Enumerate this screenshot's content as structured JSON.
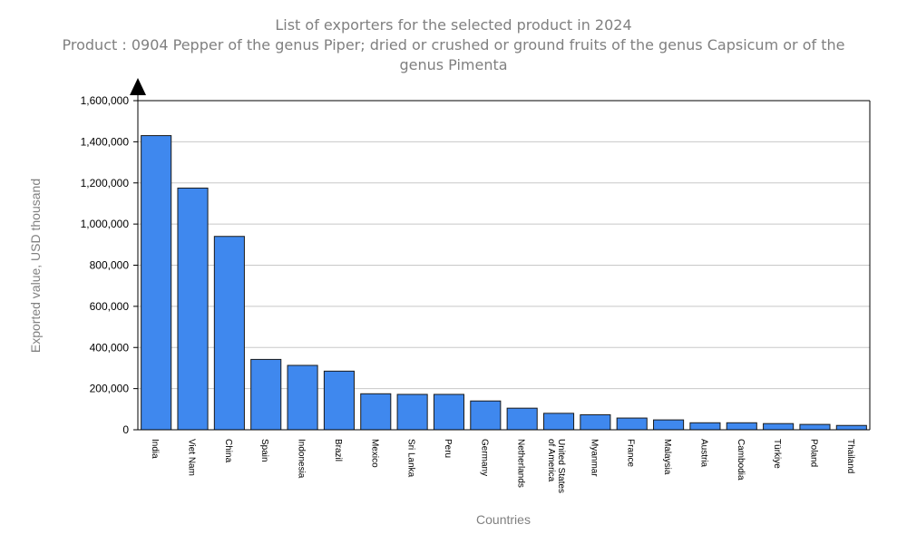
{
  "chart_data": {
    "type": "bar",
    "title": "List of exporters for the selected product in 2024",
    "subtitle": "Product : 0904 Pepper of the genus Piper; dried or crushed or ground fruits of the genus Capsicum or of the genus Pimenta",
    "xlabel": "Countries",
    "ylabel": "Exported value, USD thousand",
    "ylim": [
      0,
      1600000
    ],
    "yticks": [
      0,
      200000,
      400000,
      600000,
      800000,
      1000000,
      1200000,
      1400000,
      1600000
    ],
    "ytick_labels": [
      "0",
      "200,000",
      "400,000",
      "600,000",
      "800,000",
      "1,000,000",
      "1,200,000",
      "1,400,000",
      "1,600,000"
    ],
    "grid": true,
    "bar_color": "#3f88ee",
    "categories": [
      "India",
      "Viet Nam",
      "China",
      "Spain",
      "Indonesia",
      "Brazil",
      "Mexico",
      "Sri Lanka",
      "Peru",
      "Germany",
      "Netherlands",
      "United States of America",
      "Myanmar",
      "France",
      "Malaysia",
      "Austria",
      "Cambodia",
      "Türkiye",
      "Poland",
      "Thailand"
    ],
    "values": [
      1430000,
      1175000,
      940000,
      342000,
      313000,
      285000,
      175000,
      172000,
      172000,
      140000,
      105000,
      80000,
      73000,
      57000,
      48000,
      34000,
      34000,
      30000,
      26000,
      21000
    ]
  }
}
